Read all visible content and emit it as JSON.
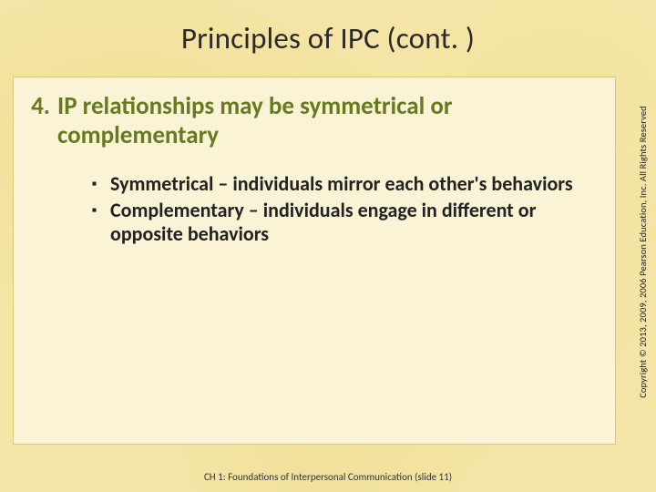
{
  "slide": {
    "title": "Principles of IPC  (cont. )",
    "background_color": "#f5e6a8",
    "content_box_bg": "#faf3d6",
    "content_box_border": "#d9c97a",
    "main_point": {
      "number": "4.",
      "text": "IP relationships may be symmetrical or complementary",
      "color": "#687a1f",
      "fontsize": 27,
      "fontweight": "bold"
    },
    "sub_points": [
      {
        "bullet": "▪",
        "text": "Symmetrical – individuals mirror each other's behaviors"
      },
      {
        "bullet": "▪",
        "text": "Complementary – individuals engage in different or opposite behaviors"
      }
    ],
    "sub_style": {
      "color": "#222222",
      "fontsize": 22,
      "fontweight": "bold"
    },
    "footer": "CH 1: Foundations of Interpersonal Communication  (slide 11)",
    "copyright": "Copyright © 2013, 2009, 2006 Pearson Education, Inc. All Rights Reserved"
  }
}
